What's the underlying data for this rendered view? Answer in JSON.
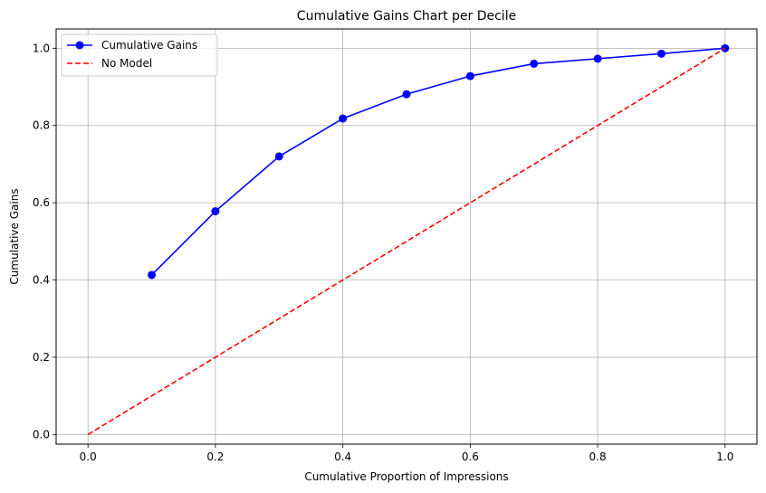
{
  "chart_data": {
    "type": "line",
    "title": "Cumulative Gains Chart per Decile",
    "xlabel": "Cumulative Proportion of Impressions",
    "ylabel": "Cumulative Gains",
    "xlim": [
      -0.05,
      1.05
    ],
    "ylim": [
      -0.025,
      1.05
    ],
    "xticks": [
      0.0,
      0.2,
      0.4,
      0.6,
      0.8,
      1.0
    ],
    "xtick_labels": [
      "0.0",
      "0.2",
      "0.4",
      "0.6",
      "0.8",
      "1.0"
    ],
    "yticks": [
      0.0,
      0.2,
      0.4,
      0.6,
      0.8,
      1.0
    ],
    "ytick_labels": [
      "0.0",
      "0.2",
      "0.4",
      "0.6",
      "0.8",
      "1.0"
    ],
    "grid": true,
    "legend_position": "top-left",
    "series": [
      {
        "name": "Cumulative Gains",
        "color": "#0000ff",
        "style": "solid",
        "marker": "circle",
        "x": [
          0.1,
          0.2,
          0.3,
          0.4,
          0.5,
          0.6,
          0.7,
          0.8,
          0.9,
          1.0
        ],
        "y": [
          0.413,
          0.578,
          0.72,
          0.818,
          0.881,
          0.928,
          0.96,
          0.973,
          0.986,
          1.0
        ]
      },
      {
        "name": "No Model",
        "color": "#ff0000",
        "style": "dashed",
        "marker": "none",
        "x": [
          0.0,
          1.0
        ],
        "y": [
          0.0,
          1.0
        ]
      }
    ]
  }
}
